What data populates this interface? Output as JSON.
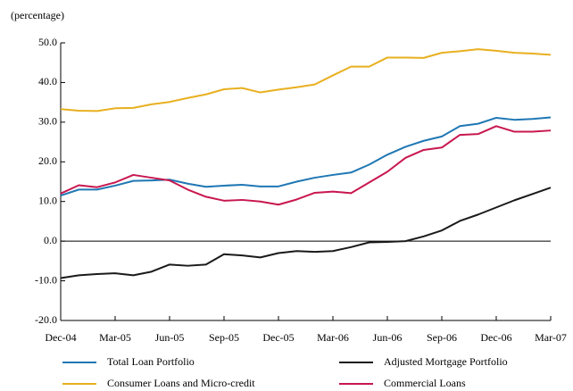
{
  "chart_data": {
    "type": "line",
    "y_axis_label": "(percentage)",
    "categories": [
      "Dec-04",
      null,
      null,
      "Mar-05",
      null,
      null,
      "Jun-05",
      null,
      null,
      "Sep-05",
      null,
      null,
      "Dec-05",
      null,
      null,
      "Mar-06",
      null,
      null,
      "Jun-06",
      null,
      null,
      "Sep-06",
      null,
      null,
      "Dec-06",
      null,
      null,
      "Mar-07"
    ],
    "series": [
      {
        "name": "Total Loan Portfolio",
        "color": "#1f77b4",
        "values": [
          11.5,
          13,
          13,
          14,
          15.2,
          15.3,
          15.5,
          14.5,
          13.7,
          14,
          14.2,
          13.8,
          13.8,
          15,
          16,
          16.7,
          17.3,
          19.3,
          21.8,
          23.8,
          25.3,
          26.4,
          29,
          29.6,
          31.1,
          30.6,
          30.8,
          31.2
        ]
      },
      {
        "name": "Adjusted Mortgage Portfolio",
        "color": "#1a1a1a",
        "values": [
          -9.3,
          -8.6,
          -8.3,
          -8.1,
          -8.6,
          -7.7,
          -5.9,
          -6.2,
          -5.9,
          -3.3,
          -3.6,
          -4.1,
          -3,
          -2.5,
          -2.7,
          -2.5,
          -1.5,
          -0.3,
          -0.2,
          0,
          1.2,
          2.7,
          5.1,
          6.7,
          8.5,
          10.3,
          11.9,
          13.5
        ]
      },
      {
        "name": "Consumer Loans and Micro-credit",
        "color": "#e8b020",
        "values": [
          33.3,
          32.9,
          32.8,
          33.5,
          33.6,
          34.5,
          35.1,
          36.1,
          37,
          38.3,
          38.6,
          37.5,
          38.2,
          38.8,
          39.5,
          41.8,
          44,
          44,
          46.3,
          46.3,
          46.2,
          47.5,
          47.9,
          48.4,
          48,
          47.5,
          47.3,
          47
        ]
      },
      {
        "name": "Commercial Loans",
        "color": "#c8174f",
        "values": [
          12,
          14.1,
          13.6,
          14.8,
          16.7,
          16,
          15.3,
          13,
          11.2,
          10.2,
          10.4,
          10,
          9.2,
          10.5,
          12.2,
          12.5,
          12.1,
          14.8,
          17.5,
          21,
          23,
          23.6,
          26.8,
          27,
          29,
          27.6,
          27.6,
          27.9
        ]
      }
    ],
    "ylim": [
      -20,
      50
    ],
    "yticks": [
      {
        "value": -20,
        "label": "-20.0"
      },
      {
        "value": -10,
        "label": "-10.0"
      },
      {
        "value": 0,
        "label": "0.0"
      },
      {
        "value": 10,
        "label": "10.0"
      },
      {
        "value": 20,
        "label": "20.0"
      },
      {
        "value": 30,
        "label": "30.0"
      },
      {
        "value": 40,
        "label": "40.0"
      },
      {
        "value": 50,
        "label": "50.0"
      }
    ],
    "legend": "bottom"
  }
}
